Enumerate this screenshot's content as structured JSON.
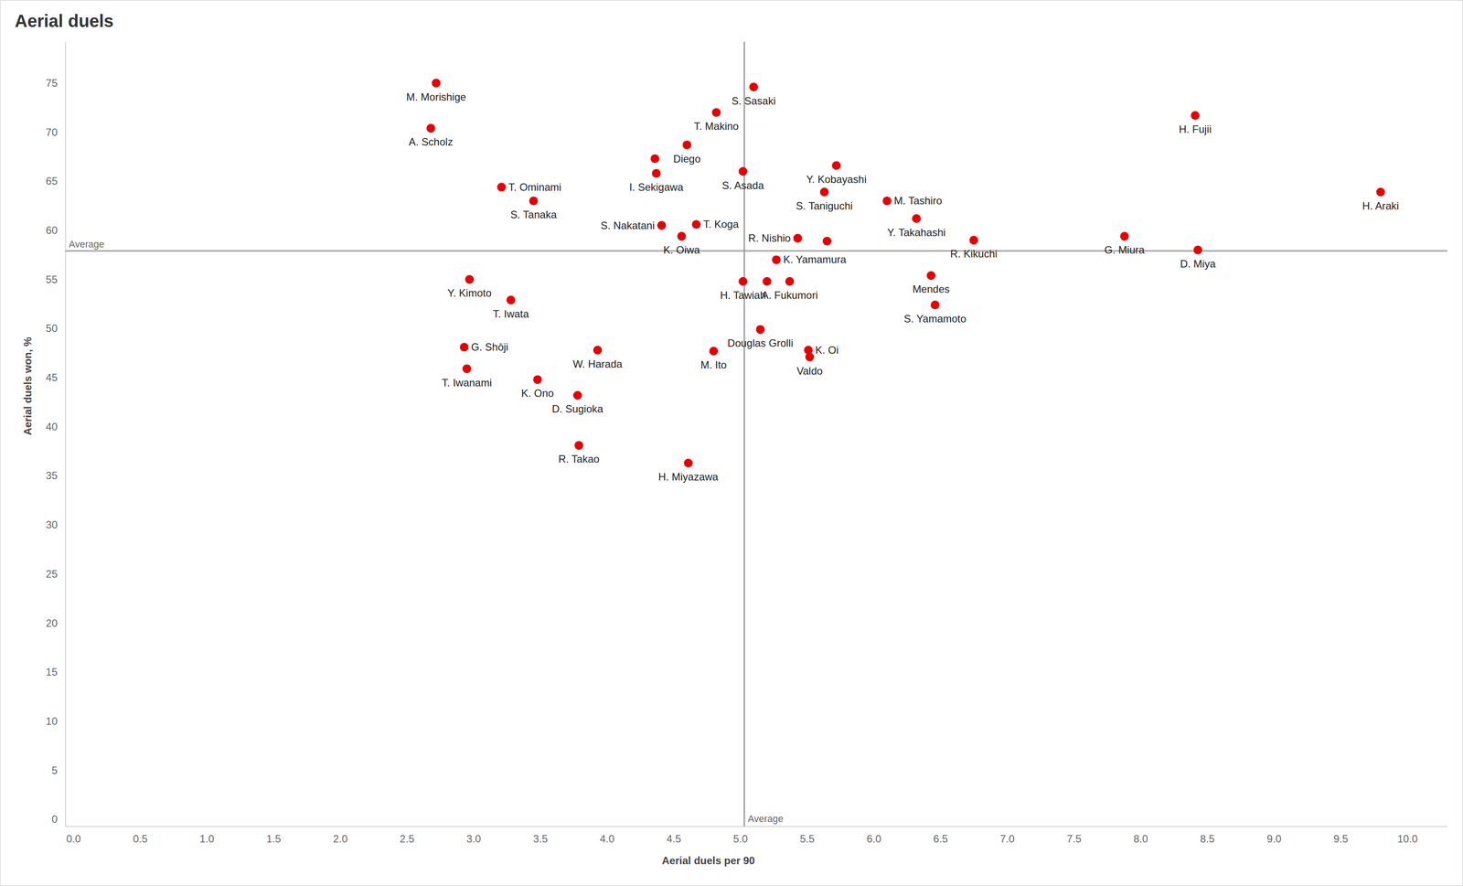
{
  "chart_data": {
    "type": "scatter",
    "title": "Aerial duels",
    "x_label": "Aerial duels per 90",
    "y_label": "Aerial duels won, %",
    "color": "#e60000",
    "marker": "circle",
    "grid": false,
    "labels": [
      "M. Morishige",
      "A. Scholz",
      "T. Ominami",
      "S. Tanaka",
      "S. Sasaki",
      "T. Makino",
      "Diego",
      null,
      "I. Sekigawa",
      "S. Asada",
      "Y. Kobayashi",
      "S. Taniguchi",
      "M. Tashiro",
      "Y. Takahashi",
      "R. Kikuchi",
      "G. Miura",
      "D. Miya",
      "H. Fujii",
      "H. Araki",
      "S. Nakatani",
      "T. Koga",
      "K. Oiwa",
      "R. Nishio",
      null,
      "K. Yamamura",
      "H. Tawiah",
      null,
      "A. Fukumori",
      "Mendes",
      "S. Yamamoto",
      "Douglas Grolli",
      "K. Oi",
      "Valdo",
      "M. Ito",
      "W. Harada",
      "Y. Kimoto",
      "T. Iwata",
      "G. Shōji",
      "T. Iwanami",
      "K. Ono",
      "D. Sugioka",
      "R. Takao",
      "H. Miyazawa"
    ],
    "x": [
      2.72,
      2.68,
      3.21,
      3.45,
      5.1,
      4.82,
      4.6,
      4.36,
      4.37,
      5.02,
      5.72,
      5.63,
      6.1,
      6.32,
      6.75,
      7.88,
      8.43,
      8.41,
      9.8,
      4.41,
      4.67,
      4.56,
      5.43,
      5.65,
      5.27,
      5.02,
      5.2,
      5.37,
      6.43,
      6.46,
      5.15,
      5.51,
      5.52,
      4.8,
      3.93,
      2.97,
      3.28,
      2.93,
      2.95,
      3.48,
      3.78,
      3.79,
      4.61
    ],
    "values": [
      75.0,
      70.4,
      64.4,
      63.0,
      74.6,
      72.0,
      68.7,
      67.3,
      65.8,
      66.0,
      66.6,
      63.9,
      63.0,
      61.2,
      59.0,
      59.4,
      58.0,
      71.7,
      63.9,
      60.5,
      60.6,
      59.4,
      59.2,
      58.9,
      57.0,
      54.8,
      54.8,
      54.8,
      55.4,
      52.4,
      49.9,
      47.8,
      47.1,
      47.7,
      47.8,
      55.0,
      52.9,
      48.1,
      45.9,
      44.8,
      43.2,
      38.1,
      36.3
    ],
    "reference_lines": [
      {
        "axis": "y",
        "value": 57.9,
        "label": "Average"
      },
      {
        "axis": "x",
        "value": 5.03,
        "label": "Average"
      }
    ],
    "xlim": [
      -0.06,
      10.3
    ],
    "ylim": [
      -0.7,
      79.2
    ],
    "xticks": [
      {
        "value": 0,
        "label": "0.0"
      },
      0.5,
      {
        "value": 1,
        "label": "1.0"
      },
      1.5,
      {
        "value": 2,
        "label": "2.0"
      },
      2.5,
      {
        "value": 3,
        "label": "3.0"
      },
      3.5,
      {
        "value": 4,
        "label": "4.0"
      },
      4.5,
      {
        "value": 5,
        "label": "5.0"
      },
      5.5,
      {
        "value": 6,
        "label": "6.0"
      },
      6.5,
      {
        "value": 7,
        "label": "7.0"
      },
      7.5,
      {
        "value": 8,
        "label": "8.0"
      },
      8.5,
      {
        "value": 9,
        "label": "9.0"
      },
      9.5,
      {
        "value": 10,
        "label": "10.0"
      }
    ],
    "yticks": [
      0,
      5,
      10,
      15,
      20,
      25,
      30,
      35,
      40,
      45,
      50,
      55,
      60,
      65,
      70,
      75
    ]
  }
}
